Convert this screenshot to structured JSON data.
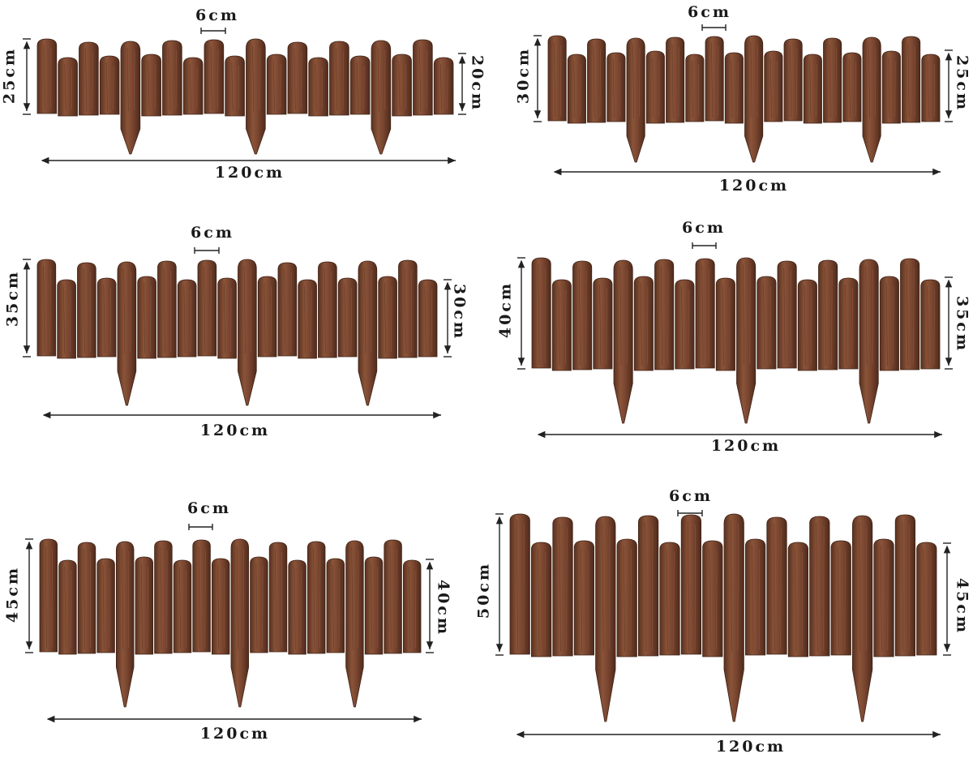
{
  "colors": {
    "wood_dark": "#5e3422",
    "wood_mid": "#7d4a33",
    "wood_light": "#9a6248",
    "line": "#222222",
    "background": "#ffffff"
  },
  "panels": [
    {
      "id": "p1",
      "picket_width_label": "6cm",
      "tall_label": "25cm",
      "short_label": "20cm",
      "length_label": "120cm"
    },
    {
      "id": "p2",
      "picket_width_label": "6cm",
      "tall_label": "30cm",
      "short_label": "25cm",
      "length_label": "120cm"
    },
    {
      "id": "p3",
      "picket_width_label": "6cm",
      "tall_label": "35cm",
      "short_label": "30cm",
      "length_label": "120cm"
    },
    {
      "id": "p4",
      "picket_width_label": "6cm",
      "tall_label": "40cm",
      "short_label": "35cm",
      "length_label": "120cm"
    },
    {
      "id": "p5",
      "picket_width_label": "6cm",
      "tall_label": "45cm",
      "short_label": "40cm",
      "length_label": "120cm"
    },
    {
      "id": "p6",
      "picket_width_label": "6cm",
      "tall_label": "50cm",
      "short_label": "45cm",
      "length_label": "120cm"
    }
  ]
}
